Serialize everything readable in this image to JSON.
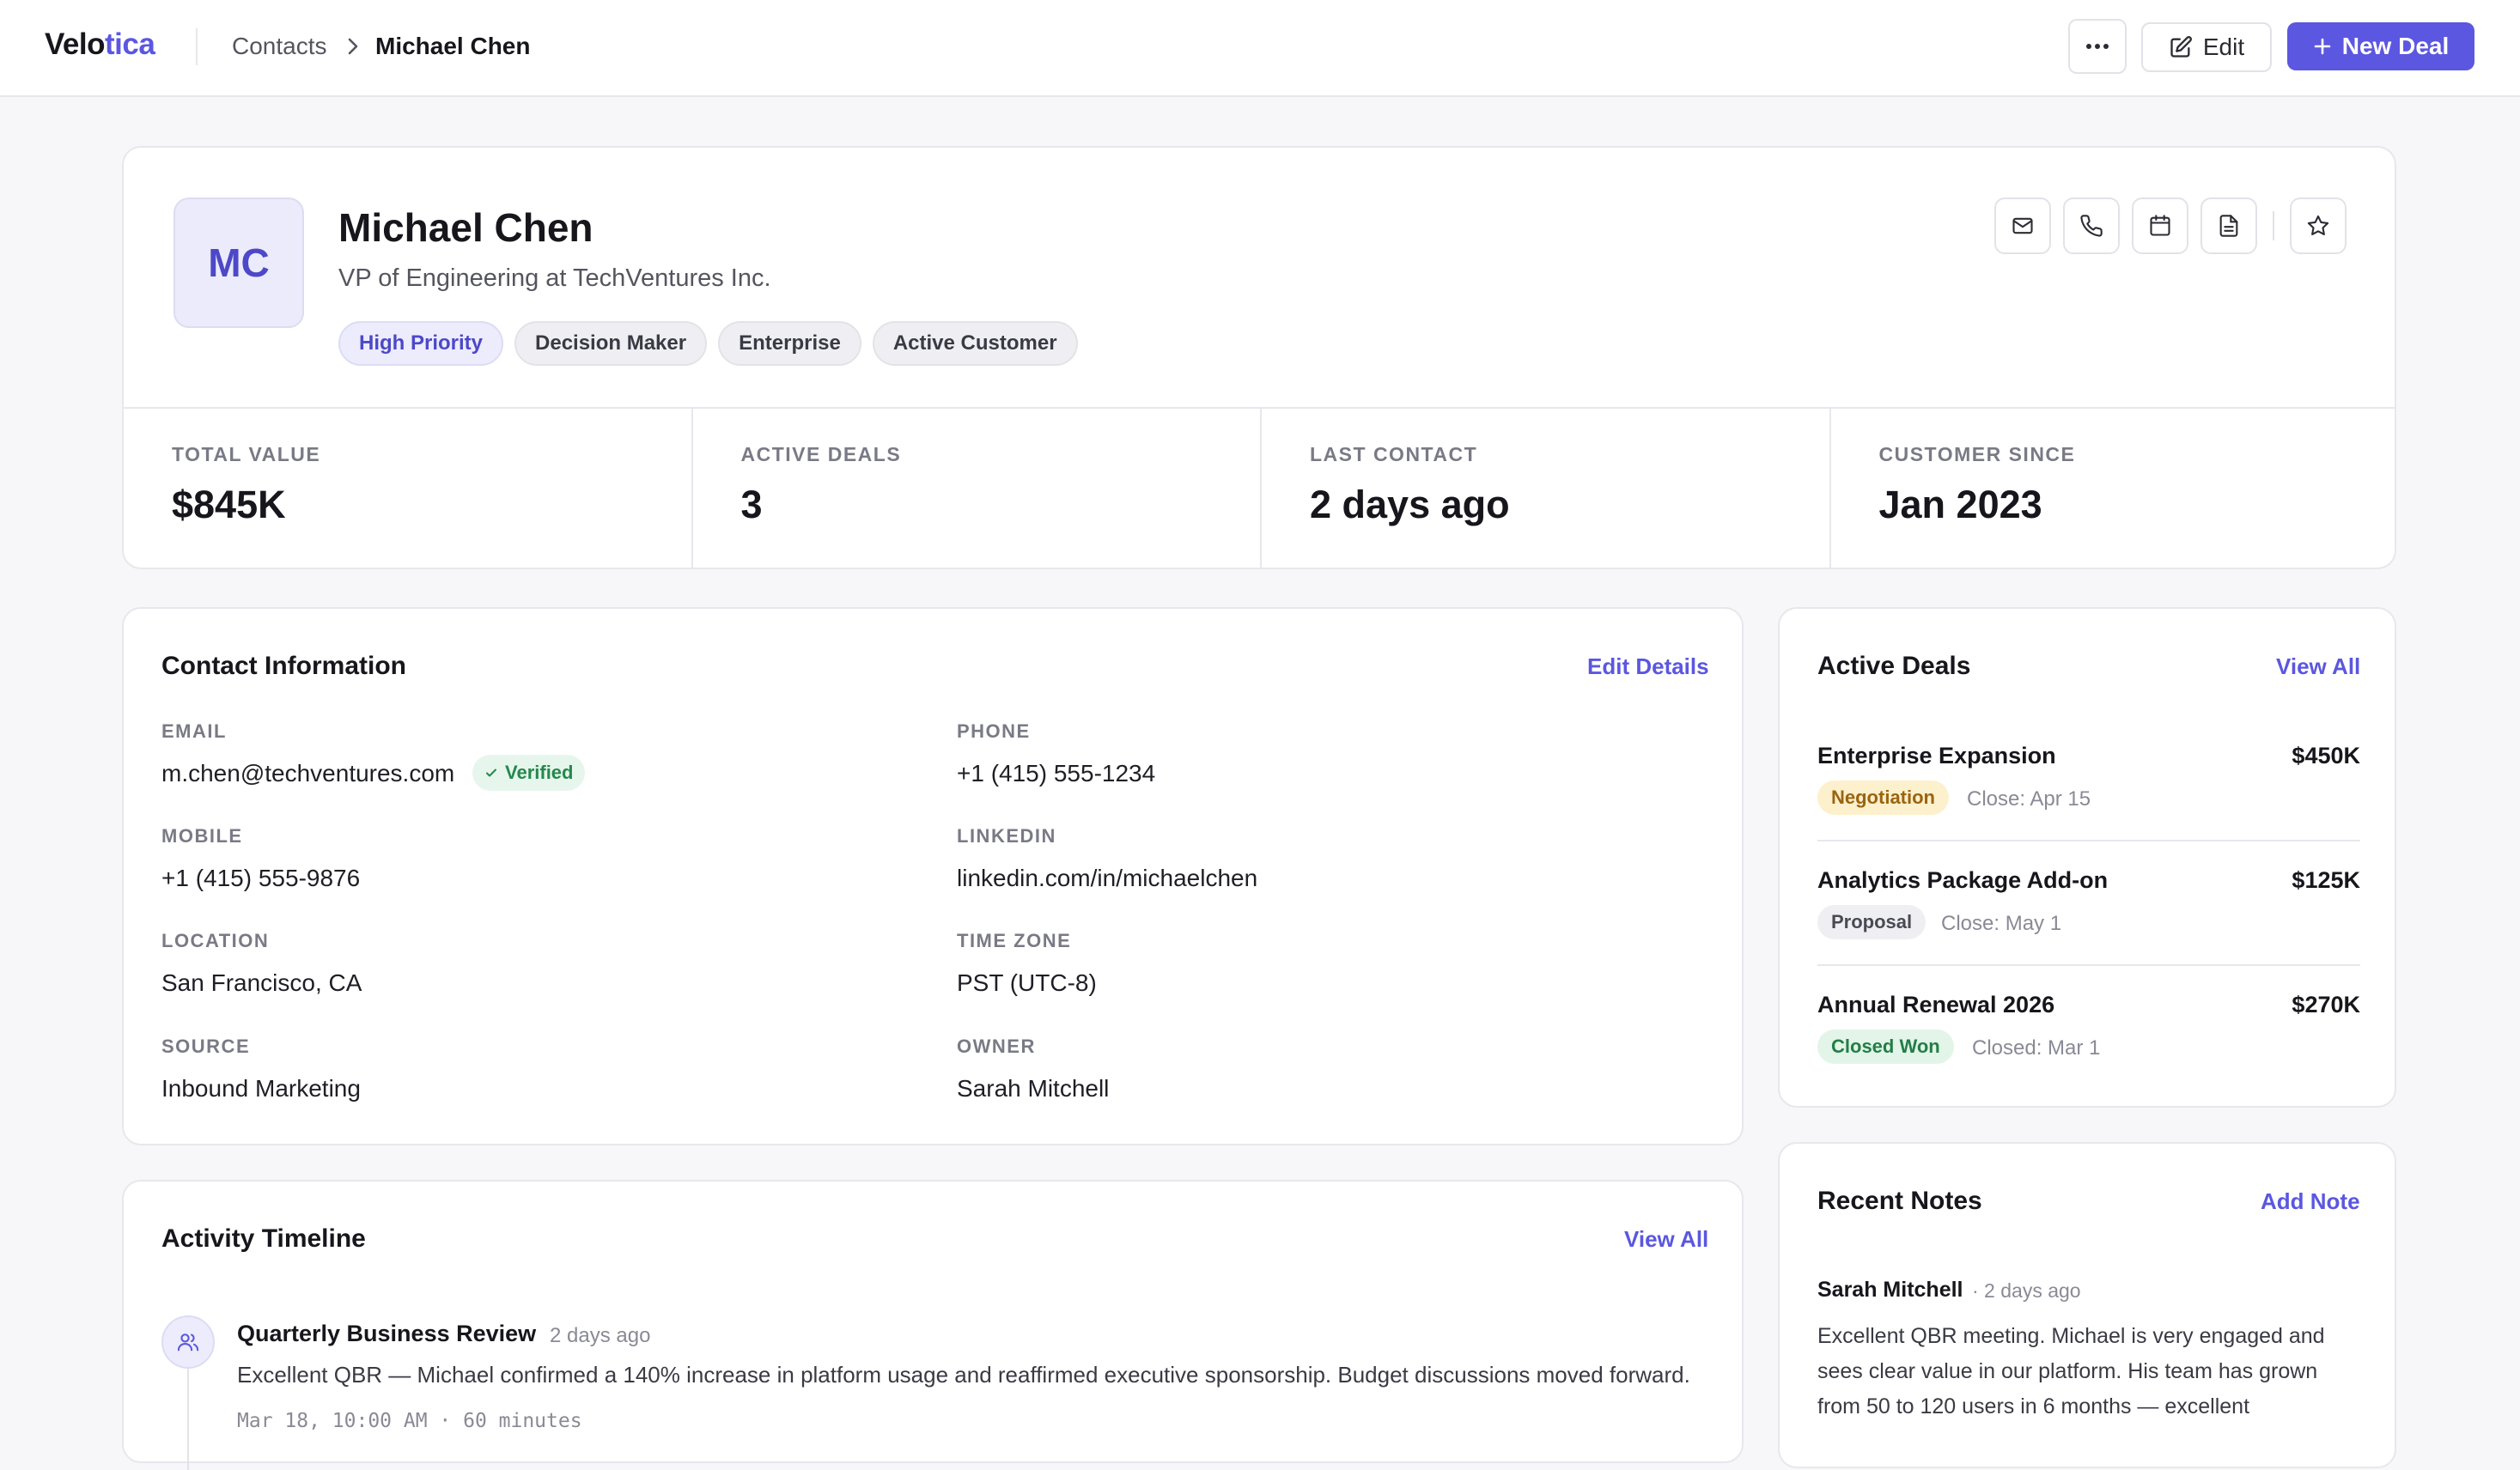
{
  "app": {
    "logo_part1": "Velo",
    "logo_part2": "tica",
    "accent_color": "#5b57e0"
  },
  "breadcrumb": {
    "parent": "Contacts",
    "current": "Michael Chen"
  },
  "toolbar": {
    "more_icon": "more-horizontal-icon",
    "edit_label": "Edit",
    "new_deal_label": "New Deal"
  },
  "profile": {
    "initials": "MC",
    "name": "Michael Chen",
    "title": "VP of Engineering at TechVentures Inc.",
    "tags": [
      "High Priority",
      "Decision Maker",
      "Enterprise",
      "Active Customer"
    ],
    "quick_actions": [
      "email-icon",
      "phone-icon",
      "calendar-icon",
      "document-icon",
      "star-icon"
    ]
  },
  "stats": [
    {
      "label": "Total Value",
      "value": "$845K"
    },
    {
      "label": "Active Deals",
      "value": "3"
    },
    {
      "label": "Last Contact",
      "value": "2 days ago"
    },
    {
      "label": "Customer Since",
      "value": "Jan 2023"
    }
  ],
  "contact_info": {
    "title": "Contact Information",
    "edit_link": "Edit Details",
    "verified_label": "Verified",
    "fields": [
      {
        "label": "Email",
        "value": "m.chen@techventures.com"
      },
      {
        "label": "Phone",
        "value": "+1 (415) 555-1234"
      },
      {
        "label": "Mobile",
        "value": "+1 (415) 555-9876"
      },
      {
        "label": "LinkedIn",
        "value": "linkedin.com/in/michaelchen"
      },
      {
        "label": "Location",
        "value": "San Francisco, CA"
      },
      {
        "label": "Time Zone",
        "value": "PST (UTC-8)"
      },
      {
        "label": "Source",
        "value": "Inbound Marketing"
      },
      {
        "label": "Owner",
        "value": "Sarah Mitchell"
      }
    ]
  },
  "timeline": {
    "title": "Activity Timeline",
    "view_all": "View All",
    "items": [
      {
        "title": "Quarterly Business Review",
        "time": "2 days ago",
        "description": "Excellent QBR — Michael confirmed a 140% increase in platform usage and reaffirmed executive sponsorship. Budget discussions moved forward.",
        "meta": "Mar 18, 10:00 AM · 60 minutes"
      }
    ]
  },
  "deals": {
    "title": "Active Deals",
    "view_all": "View All",
    "items": [
      {
        "name": "Enterprise Expansion",
        "amount": "$450K",
        "stage": "Negotiation",
        "close": "Close: Apr 15"
      },
      {
        "name": "Analytics Package Add-on",
        "amount": "$125K",
        "stage": "Proposal",
        "close": "Close: May 1"
      },
      {
        "name": "Annual Renewal 2026",
        "amount": "$270K",
        "stage": "Closed Won",
        "close": "Closed: Mar 1"
      }
    ]
  },
  "notes": {
    "title": "Recent Notes",
    "add_label": "Add Note",
    "items": [
      {
        "author": "Sarah Mitchell",
        "time": "· 2 days ago",
        "text": "Excellent QBR meeting. Michael is very engaged and sees clear value in our platform. His team has grown from 50 to 120 users in 6 months — excellent"
      }
    ]
  }
}
